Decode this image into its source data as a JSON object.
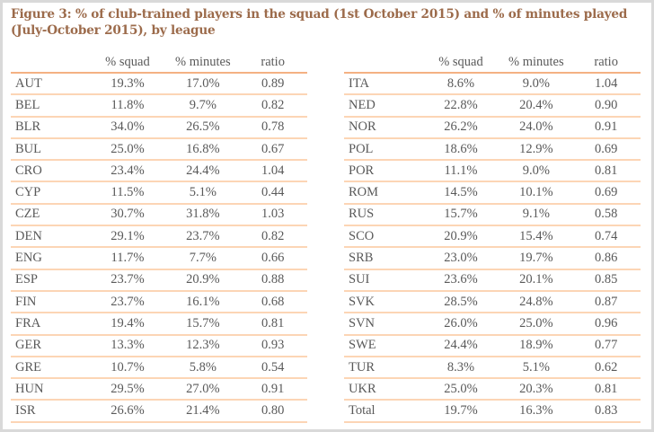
{
  "title": "Figure 3: % of club-trained players in the squad (1st October 2015) and % of minutes played (July-October 2015), by league",
  "columns": [
    "",
    "% squad",
    "% minutes",
    "ratio"
  ],
  "left_rows": [
    [
      "AUT",
      "19.3%",
      "17.0%",
      "0.89"
    ],
    [
      "BEL",
      "11.8%",
      "9.7%",
      "0.82"
    ],
    [
      "BLR",
      "34.0%",
      "26.5%",
      "0.78"
    ],
    [
      "BUL",
      "25.0%",
      "16.8%",
      "0.67"
    ],
    [
      "CRO",
      "23.4%",
      "24.4%",
      "1.04"
    ],
    [
      "CYP",
      "11.5%",
      "5.1%",
      "0.44"
    ],
    [
      "CZE",
      "30.7%",
      "31.8%",
      "1.03"
    ],
    [
      "DEN",
      "29.1%",
      "23.7%",
      "0.82"
    ],
    [
      "ENG",
      "11.7%",
      "7.7%",
      "0.66"
    ],
    [
      "ESP",
      "23.7%",
      "20.9%",
      "0.88"
    ],
    [
      "FIN",
      "23.7%",
      "16.1%",
      "0.68"
    ],
    [
      "FRA",
      "19.4%",
      "15.7%",
      "0.81"
    ],
    [
      "GER",
      "13.3%",
      "12.3%",
      "0.93"
    ],
    [
      "GRE",
      "10.7%",
      "5.8%",
      "0.54"
    ],
    [
      "HUN",
      "29.5%",
      "27.0%",
      "0.91"
    ],
    [
      "ISR",
      "26.6%",
      "21.4%",
      "0.80"
    ]
  ],
  "right_rows": [
    [
      "ITA",
      "8.6%",
      "9.0%",
      "1.04"
    ],
    [
      "NED",
      "22.8%",
      "20.4%",
      "0.90"
    ],
    [
      "NOR",
      "26.2%",
      "24.0%",
      "0.91"
    ],
    [
      "POL",
      "18.6%",
      "12.9%",
      "0.69"
    ],
    [
      "POR",
      "11.1%",
      "9.0%",
      "0.81"
    ],
    [
      "ROM",
      "14.5%",
      "10.1%",
      "0.69"
    ],
    [
      "RUS",
      "15.7%",
      "9.1%",
      "0.58"
    ],
    [
      "SCO",
      "20.9%",
      "15.4%",
      "0.74"
    ],
    [
      "SRB",
      "23.0%",
      "19.7%",
      "0.86"
    ],
    [
      "SUI",
      "23.6%",
      "20.1%",
      "0.85"
    ],
    [
      "SVK",
      "28.5%",
      "24.8%",
      "0.87"
    ],
    [
      "SVN",
      "26.0%",
      "25.0%",
      "0.96"
    ],
    [
      "SWE",
      "24.4%",
      "18.9%",
      "0.77"
    ],
    [
      "TUR",
      "8.3%",
      "5.1%",
      "0.62"
    ],
    [
      "UKR",
      "25.0%",
      "20.3%",
      "0.81"
    ],
    [
      "Total",
      "19.7%",
      "16.3%",
      "0.83"
    ]
  ],
  "colors": {
    "title": "#9c6b4b",
    "header_rule": "#f4b183",
    "row_rule": "#fcd5b5",
    "text": "#595959",
    "frame": "#d9d9d9"
  }
}
